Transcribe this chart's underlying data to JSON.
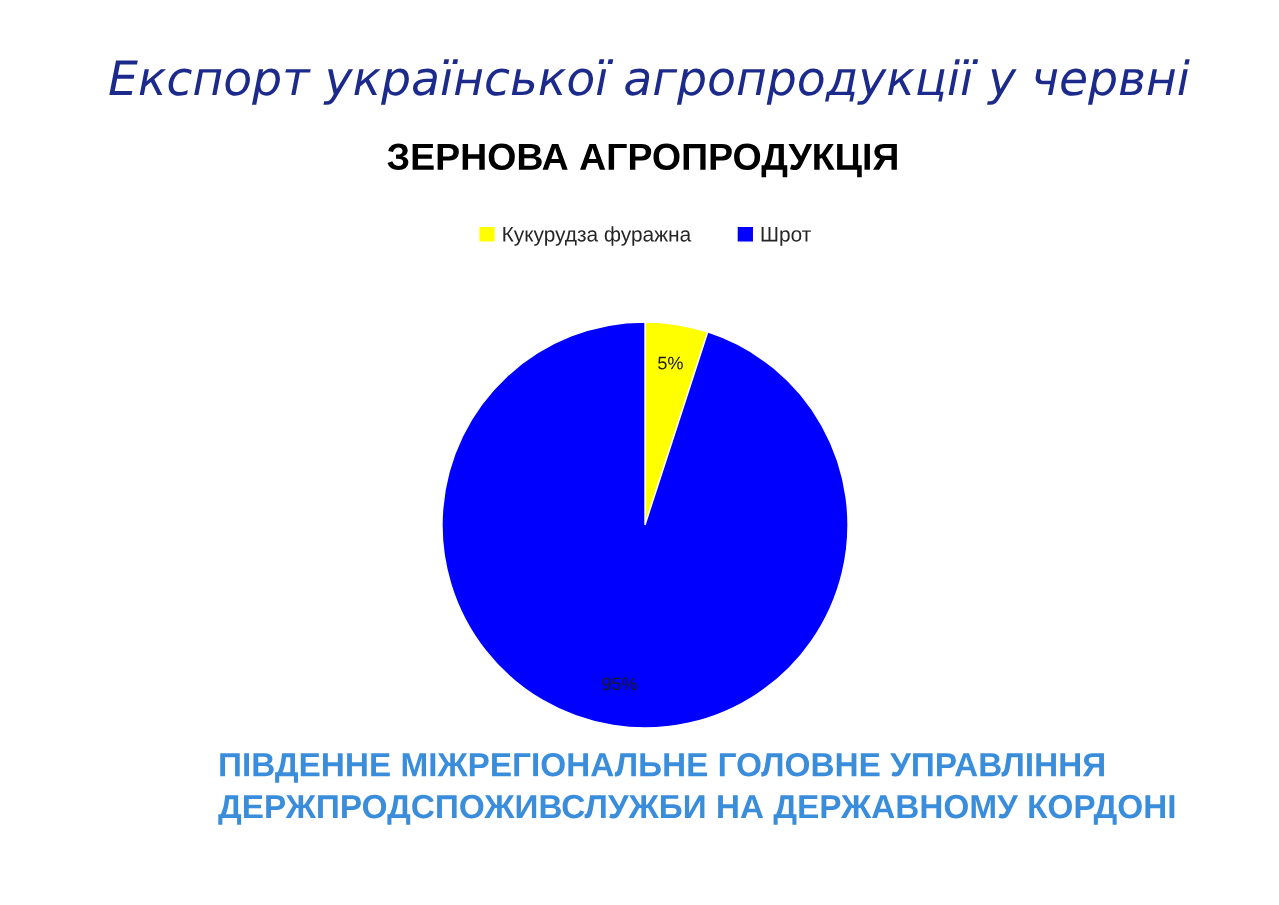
{
  "chart_data": {
    "type": "pie",
    "title": "Експорт української агропродукції у червні",
    "subtitle": "ЗЕРНОВА АГРОПРОДУКЦІЯ",
    "categories": [
      "Кукурудза фуражна",
      "Шрот"
    ],
    "values": [
      5,
      95
    ],
    "colors": [
      "#ffff00",
      "#0000ff"
    ],
    "value_labels": [
      "5%",
      "95%"
    ],
    "legend": "top",
    "annotations": [
      "ПІВДЕННЕ МІЖРЕГІОНАЛЬНЕ ГОЛОВНЕ УПРАВЛІННЯ\nДЕРЖПРОДСПОЖИВСЛУЖБИ НА ДЕРЖАВНОМУ КОРДОНІ"
    ]
  }
}
